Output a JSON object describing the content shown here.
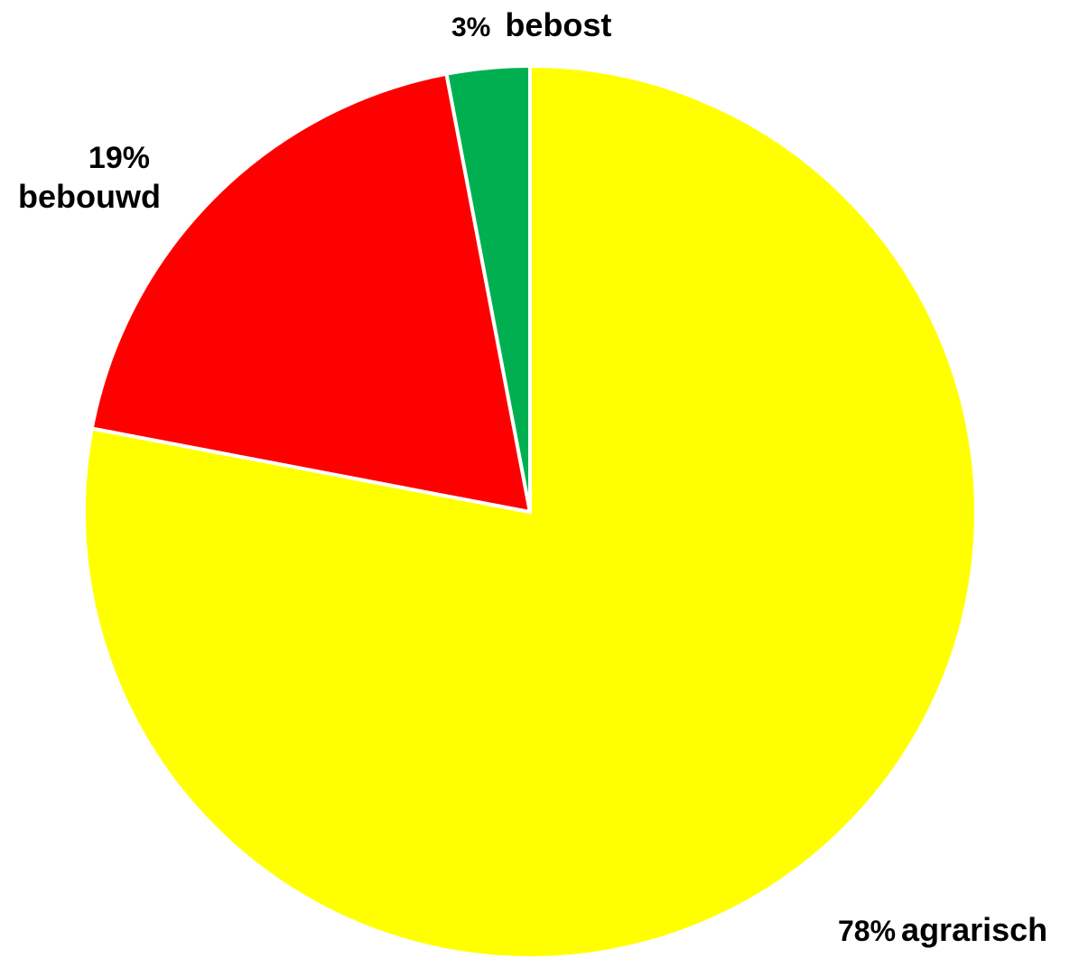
{
  "chart_data": {
    "type": "pie",
    "title": "",
    "slices": [
      {
        "label": "agrarisch",
        "pct_label": "78%",
        "value": 78,
        "color": "#FFFF00"
      },
      {
        "label": "bebouwd",
        "pct_label": "19%",
        "value": 19,
        "color": "#FF0000"
      },
      {
        "label": "bebost",
        "pct_label": "3%",
        "value": 3,
        "color": "#00B050"
      }
    ],
    "start_angle_deg": 0,
    "direction": "clockwise",
    "slice_border_color": "#FFFFFF",
    "legend": "none"
  }
}
